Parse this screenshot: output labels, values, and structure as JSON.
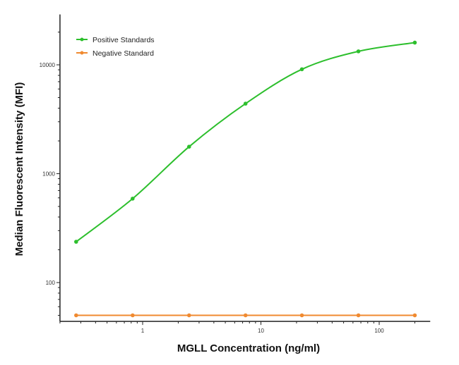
{
  "chart_data": {
    "type": "line",
    "title": "",
    "xlabel": "MGLL Concentration (ng/ml)",
    "ylabel": "Median  Fluorescent Intensity  (MFI)",
    "xscale": "log",
    "yscale": "log",
    "xlim": [
      0.2,
      270
    ],
    "ylim": [
      44,
      29000
    ],
    "x_ticks": [
      {
        "value": 1,
        "label": "1"
      },
      {
        "value": 10,
        "label": "10"
      },
      {
        "value": 100,
        "label": "100"
      }
    ],
    "y_ticks": [
      {
        "value": 100,
        "label": "100"
      },
      {
        "value": 1000,
        "label": "1000"
      },
      {
        "value": 10000,
        "label": "10000"
      }
    ],
    "grid": false,
    "legend_position": "top-left",
    "x": [
      0.274,
      0.823,
      2.47,
      7.41,
      22.2,
      66.7,
      200
    ],
    "series": [
      {
        "name": "Positive Standards",
        "color": "#2dbf2d",
        "values": [
          237,
          590,
          1770,
          4400,
          9100,
          13300,
          16000
        ]
      },
      {
        "name": "Negative Standard",
        "color": "#f08a30",
        "values": [
          50,
          50,
          50,
          50,
          50,
          50,
          50
        ]
      }
    ]
  }
}
